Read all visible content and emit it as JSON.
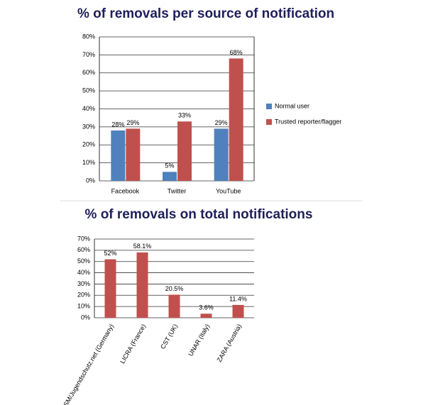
{
  "chart_data": [
    {
      "type": "bar",
      "title": "% of removals per source of notification",
      "categories": [
        "Facebook",
        "Twitter",
        "YouTube"
      ],
      "series": [
        {
          "name": "Normal user",
          "color": "#4f81bd",
          "values": [
            28,
            5,
            29
          ],
          "value_labels": [
            "28%",
            "5%",
            "29%"
          ]
        },
        {
          "name": "Trusted reporter/flagger",
          "color": "#c0504d",
          "values": [
            29,
            33,
            68
          ],
          "value_labels": [
            "29%",
            "33%",
            "68%"
          ]
        }
      ],
      "ylim": [
        0,
        80
      ],
      "yticks": [
        {
          "value": 0,
          "label": "0%"
        },
        {
          "value": 10,
          "label": "10%"
        },
        {
          "value": 20,
          "label": "20%"
        },
        {
          "value": 30,
          "label": "30%"
        },
        {
          "value": 40,
          "label": "40%"
        },
        {
          "value": 50,
          "label": "50%"
        },
        {
          "value": 60,
          "label": "60%"
        },
        {
          "value": 70,
          "label": "70%"
        },
        {
          "value": 80,
          "label": "80%"
        }
      ],
      "grid": true,
      "legend": "right"
    },
    {
      "type": "bar",
      "title": "% of removals on total notifications",
      "categories": [
        "FSM/Jugendschutz.net (Germany)",
        "LICRA (France)",
        "CST (UK)",
        "UNAR (Italy)",
        "ZARA (Austria)"
      ],
      "values": [
        52,
        58.1,
        20.5,
        3.6,
        11.4
      ],
      "value_labels": [
        "52%",
        "58.1%",
        "20.5%",
        "3.6%",
        "11.4%"
      ],
      "color": "#c0504d",
      "ylim": [
        0,
        70
      ],
      "yticks": [
        {
          "value": 0,
          "label": "0%"
        },
        {
          "value": 10,
          "label": "10%"
        },
        {
          "value": 20,
          "label": "20%"
        },
        {
          "value": 30,
          "label": "30%"
        },
        {
          "value": 40,
          "label": "40%"
        },
        {
          "value": 50,
          "label": "50%"
        },
        {
          "value": 60,
          "label": "60%"
        },
        {
          "value": 70,
          "label": "70%"
        }
      ],
      "grid": true
    }
  ]
}
